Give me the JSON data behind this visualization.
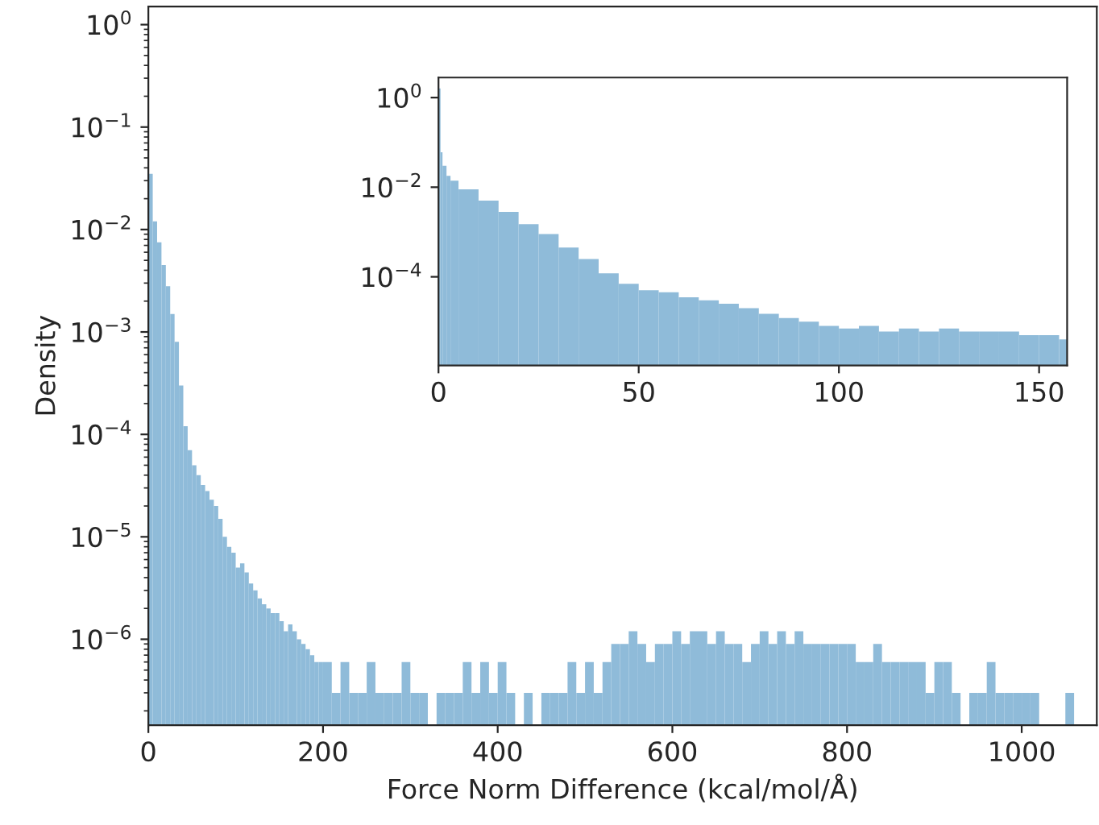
{
  "chart_data": [
    {
      "type": "histogram",
      "xlabel": "Force Norm Difference (kcal/mol/Å)",
      "ylabel": "Density",
      "log": "y",
      "color": "#8fbbd9",
      "bins": [
        0,
        5,
        10,
        15,
        20,
        25,
        30,
        35,
        40,
        45,
        50,
        55,
        60,
        65,
        70,
        75,
        80,
        85,
        90,
        95,
        100,
        105,
        110,
        115,
        120,
        125,
        130,
        135,
        140,
        145,
        150,
        155,
        160,
        165,
        170,
        175,
        180,
        185,
        190,
        195,
        200,
        210,
        220,
        230,
        240,
        250,
        260,
        270,
        280,
        290,
        300,
        310,
        320,
        330,
        340,
        350,
        360,
        370,
        380,
        390,
        400,
        410,
        420,
        430,
        440,
        450,
        460,
        470,
        480,
        490,
        500,
        510,
        520,
        530,
        540,
        550,
        560,
        570,
        580,
        590,
        600,
        610,
        620,
        630,
        640,
        650,
        660,
        670,
        680,
        690,
        700,
        710,
        720,
        730,
        740,
        750,
        760,
        770,
        780,
        790,
        800,
        810,
        820,
        830,
        840,
        850,
        860,
        870,
        880,
        890,
        900,
        910,
        920,
        930,
        940,
        950,
        960,
        970,
        980,
        990,
        1000,
        1010,
        1020,
        1050,
        1060
      ],
      "values": [
        0.035,
        0.012,
        0.0075,
        0.0045,
        0.0028,
        0.0015,
        0.0008,
        0.0003,
        0.00012,
        7e-05,
        5e-05,
        4e-05,
        3.2e-05,
        2.8e-05,
        2.3e-05,
        2e-05,
        1.5e-05,
        1e-05,
        8e-06,
        7e-06,
        5e-06,
        5.5e-06,
        4.5e-06,
        3.5e-06,
        3e-06,
        2.5e-06,
        2.2e-06,
        2e-06,
        1.8e-06,
        1.8e-06,
        1.5e-06,
        1.2e-06,
        1.4e-06,
        1.2e-06,
        1e-06,
        9e-07,
        8e-07,
        7e-07,
        6e-07,
        6e-07,
        6e-07,
        3e-07,
        6e-07,
        3e-07,
        3e-07,
        6e-07,
        3e-07,
        3e-07,
        3e-07,
        6e-07,
        3e-07,
        3e-07,
        null,
        3e-07,
        3e-07,
        3e-07,
        6e-07,
        3e-07,
        6e-07,
        3e-07,
        6e-07,
        3e-07,
        null,
        3e-07,
        null,
        3e-07,
        3e-07,
        3e-07,
        6e-07,
        3e-07,
        6e-07,
        3e-07,
        6e-07,
        9e-07,
        9e-07,
        1.2e-06,
        9e-07,
        6e-07,
        9e-07,
        9e-07,
        1.2e-06,
        9e-07,
        1.2e-06,
        1.2e-06,
        9e-07,
        1.2e-06,
        9e-07,
        9e-07,
        6e-07,
        9e-07,
        1.2e-06,
        9e-07,
        1.2e-06,
        9e-07,
        1.2e-06,
        9e-07,
        9e-07,
        9e-07,
        9e-07,
        9e-07,
        9e-07,
        6e-07,
        6e-07,
        9e-07,
        6e-07,
        6e-07,
        6e-07,
        6e-07,
        6e-07,
        3e-07,
        6e-07,
        6e-07,
        3e-07,
        null,
        3e-07,
        3e-07,
        6e-07,
        3e-07,
        3e-07,
        3e-07,
        3e-07,
        3e-07,
        null,
        3e-07
      ],
      "xlim": [
        0,
        1086
      ],
      "ylim": [
        1.45e-07,
        1.5
      ],
      "xticks": [
        0,
        200,
        400,
        600,
        800,
        1000
      ],
      "yticks": [
        {
          "value": 1e-06,
          "label": "10$^{−6}$"
        },
        {
          "value": 1e-05,
          "label": "10$^{−5}$"
        },
        {
          "value": 0.0001,
          "label": "10$^{−4}$"
        },
        {
          "value": 0.001,
          "label": "10$^{−3}$"
        },
        {
          "value": 0.01,
          "label": "10$^{−2}$"
        },
        {
          "value": 0.1,
          "label": "10$^{−1}$"
        },
        {
          "value": 1,
          "label": "10$^{0}$"
        }
      ]
    },
    {
      "type": "histogram",
      "log": "y",
      "color": "#8fbbd9",
      "bins": [
        0,
        0.5,
        1,
        2,
        3,
        5,
        10,
        15,
        20,
        25,
        30,
        35,
        40,
        45,
        50,
        55,
        60,
        65,
        70,
        75,
        80,
        85,
        90,
        95,
        100,
        105,
        110,
        115,
        120,
        125,
        130,
        135,
        140,
        145,
        150,
        155,
        157
      ],
      "values": [
        1.6,
        0.06,
        0.03,
        0.018,
        0.014,
        0.009,
        0.005,
        0.0028,
        0.0015,
        0.0009,
        0.00045,
        0.00025,
        0.00012,
        7e-05,
        5e-05,
        4.5e-05,
        3.5e-05,
        3e-05,
        2.5e-05,
        2e-05,
        1.5e-05,
        1.2e-05,
        1e-05,
        8e-06,
        7e-06,
        8e-06,
        6e-06,
        7e-06,
        6e-06,
        7e-06,
        6e-06,
        6e-06,
        6e-06,
        5e-06,
        5e-06,
        4e-06
      ],
      "xlim": [
        0,
        157
      ],
      "ylim": [
        1.05e-06,
        2.8
      ],
      "xticks": [
        0,
        50,
        100,
        150
      ],
      "yticks": [
        {
          "value": 0.0001,
          "label": "10$^{−4}$"
        },
        {
          "value": 0.01,
          "label": "10$^{−2}$"
        },
        {
          "value": 1,
          "label": "10$^{0}$"
        }
      ]
    }
  ]
}
